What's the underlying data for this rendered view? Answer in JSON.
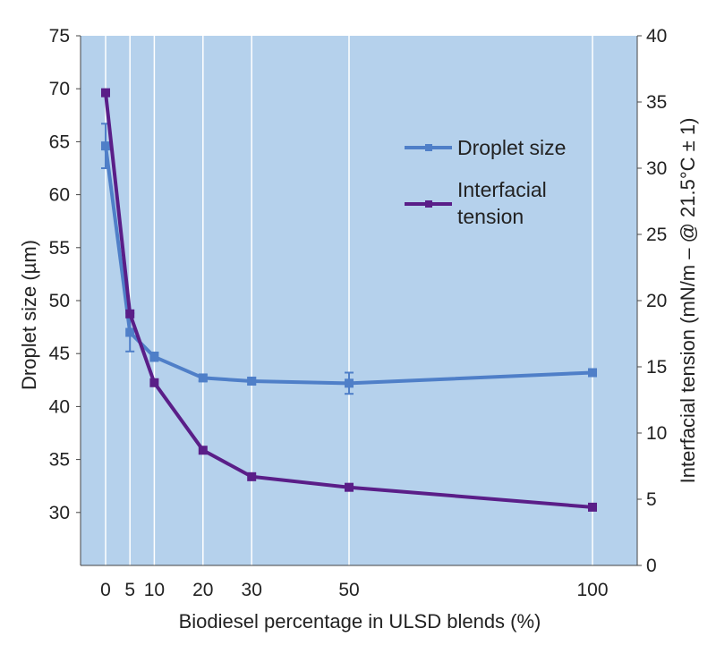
{
  "chart_data": {
    "type": "line",
    "x": [
      0,
      5,
      10,
      20,
      30,
      50,
      100
    ],
    "x_tick_labels": [
      "0",
      "5",
      "10",
      "20",
      "30",
      "50",
      "100"
    ],
    "xlabel": "Biodiesel percentage in ULSD blends (%)",
    "ylabel_left": "Droplet size (µm)",
    "ylabel_right": "Interfacial tension (mN/m – @ 21.5°C ± 1)",
    "ylim_left": [
      25,
      75
    ],
    "ylim_right": [
      0,
      40
    ],
    "y_ticks_left": [
      "30",
      "35",
      "40",
      "45",
      "50",
      "55",
      "60",
      "65",
      "70",
      "75"
    ],
    "y_ticks_right": [
      "0",
      "5",
      "10",
      "15",
      "20",
      "25",
      "30",
      "35",
      "40"
    ],
    "grid": "vertical lines at x data points",
    "legend_position": "upper-right",
    "plot_background": "#b5d1ec",
    "series": [
      {
        "name": "Droplet size",
        "axis": "left",
        "color": "#4f7fc8",
        "values": [
          64.6,
          47.0,
          44.7,
          42.7,
          42.4,
          42.2,
          43.2
        ],
        "error": [
          2.1,
          1.8,
          0.4,
          0.3,
          0.3,
          1.0,
          0.3
        ]
      },
      {
        "name_lines": [
          "Interfacial",
          "tension"
        ],
        "axis": "right",
        "color": "#5a1e88",
        "values": [
          35.7,
          19.0,
          13.8,
          8.7,
          6.7,
          5.9,
          4.4
        ]
      }
    ]
  }
}
